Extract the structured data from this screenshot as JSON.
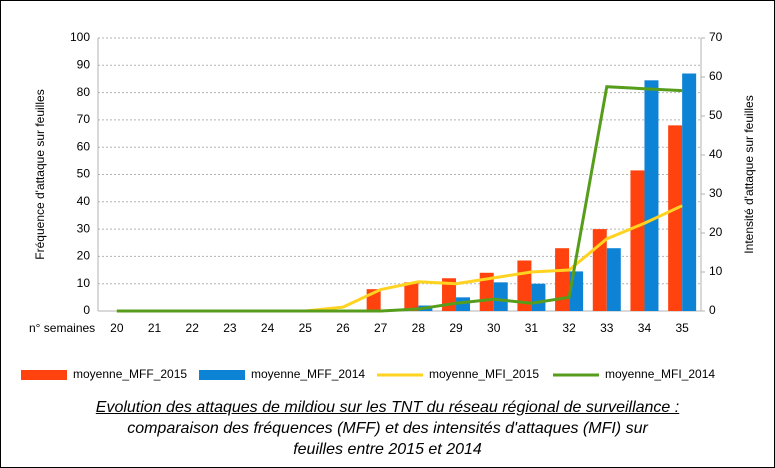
{
  "chart_data": {
    "type": "bar",
    "categories": [
      "20",
      "21",
      "22",
      "23",
      "24",
      "25",
      "26",
      "27",
      "28",
      "29",
      "30",
      "31",
      "32",
      "33",
      "34",
      "35"
    ],
    "x_label": "n° semaines",
    "y_label": "Fréquence d'attaque sur feuilles",
    "y2_label": "Intensité d'attaque sur feuilles",
    "ylim": [
      0,
      100
    ],
    "yticks": [
      0,
      10,
      20,
      30,
      40,
      50,
      60,
      70,
      80,
      90,
      100
    ],
    "y2lim": [
      0,
      70
    ],
    "y2ticks": [
      0,
      10,
      20,
      30,
      40,
      50,
      60,
      70
    ],
    "grid": true,
    "series": [
      {
        "name": "moyenne_MFF_2015",
        "type": "bar",
        "color": "#ff420e",
        "values": [
          0,
          0,
          0,
          0,
          0,
          0,
          0,
          8,
          10.5,
          12,
          14,
          18.5,
          23,
          30,
          51.5,
          68
        ]
      },
      {
        "name": "moyenne_MFF_2014",
        "type": "bar",
        "color": "#0d83d5",
        "values": [
          0,
          0,
          0,
          0,
          0,
          0,
          0,
          0,
          2,
          5,
          10.5,
          10,
          14.5,
          23,
          84.5,
          87
        ]
      },
      {
        "name": "moyenne_MFI_2015",
        "type": "line",
        "axis": "y2",
        "color": "#ffd320",
        "values": [
          0,
          0,
          0,
          0,
          0,
          0,
          1,
          5.5,
          7.5,
          7,
          8.5,
          10,
          10.5,
          18.5,
          22.5,
          27
        ]
      },
      {
        "name": "moyenne_MFI_2014",
        "type": "line",
        "axis": "y2",
        "color": "#579d1c",
        "values": [
          0,
          0,
          0,
          0,
          0,
          0,
          0,
          0,
          0.5,
          2,
          3,
          2,
          3.5,
          57.5,
          57,
          56.5
        ]
      }
    ],
    "caption": [
      "Evolution des attaques de mildiou sur les TNT du réseau régional de surveillance :",
      "comparaison des fréquences (MFF) et des intensités d'attaques (MFI) sur",
      "feuilles entre 2015 et 2014"
    ]
  }
}
